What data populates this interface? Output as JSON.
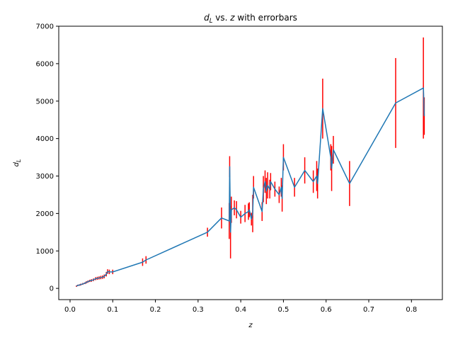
{
  "chart_data": {
    "type": "line",
    "title": "d_L vs. z with errorbars",
    "title_parts": {
      "sym": "d",
      "sub": "L",
      "rest": " vs. ",
      "var": "z",
      "tail": " with errorbars"
    },
    "xlabel": "z",
    "ylabel_parts": {
      "sym": "d",
      "sub": "L"
    },
    "xlim": [
      -0.0265,
      0.8725
    ],
    "ylim": [
      -300,
      7000
    ],
    "xticks": [
      0.0,
      0.1,
      0.2,
      0.3,
      0.4,
      0.5,
      0.6,
      0.7,
      0.8
    ],
    "xtick_labels": [
      "0.0",
      "0.1",
      "0.2",
      "0.3",
      "0.4",
      "0.5",
      "0.6",
      "0.7",
      "0.8"
    ],
    "yticks": [
      0,
      1000,
      2000,
      3000,
      4000,
      5000,
      6000,
      7000
    ],
    "ytick_labels": [
      "0",
      "1000",
      "2000",
      "3000",
      "4000",
      "5000",
      "6000",
      "7000"
    ],
    "grid": false,
    "line_color": "#1f77b4",
    "errorbar_color": "#ff0000",
    "series": [
      {
        "x": [
          0.015,
          0.018,
          0.022,
          0.025,
          0.03,
          0.035,
          0.038,
          0.042,
          0.046,
          0.05,
          0.055,
          0.06,
          0.064,
          0.068,
          0.072,
          0.076,
          0.08,
          0.085,
          0.088,
          0.092,
          0.1,
          0.17,
          0.178,
          0.322,
          0.355,
          0.373,
          0.374,
          0.376,
          0.378,
          0.385,
          0.39,
          0.4,
          0.41,
          0.418,
          0.42,
          0.425,
          0.428,
          0.43,
          0.45,
          0.453,
          0.457,
          0.46,
          0.463,
          0.468,
          0.47,
          0.48,
          0.49,
          0.495,
          0.497,
          0.5,
          0.526,
          0.55,
          0.57,
          0.578,
          0.58,
          0.592,
          0.611,
          0.613,
          0.617,
          0.655,
          0.763,
          0.828,
          0.83
        ],
        "y": [
          60,
          80,
          90,
          100,
          120,
          140,
          160,
          180,
          200,
          210,
          230,
          260,
          270,
          280,
          290,
          300,
          320,
          380,
          450,
          440,
          440,
          700,
          760,
          1500,
          1880,
          1800,
          3250,
          1500,
          2100,
          2150,
          2100,
          1900,
          2000,
          2050,
          2100,
          1850,
          2000,
          2700,
          2050,
          2650,
          2850,
          2600,
          2750,
          2650,
          2850,
          2650,
          2500,
          2700,
          2400,
          3500,
          2700,
          3150,
          2850,
          3000,
          2800,
          4800,
          3500,
          3200,
          3700,
          2800,
          4950,
          5350,
          4600
        ],
        "err": [
          20,
          20,
          20,
          25,
          25,
          25,
          30,
          30,
          30,
          35,
          35,
          40,
          40,
          40,
          45,
          45,
          50,
          60,
          60,
          60,
          60,
          100,
          100,
          120,
          280,
          480,
          280,
          700,
          350,
          200,
          230,
          170,
          230,
          220,
          200,
          170,
          500,
          300,
          250,
          350,
          300,
          350,
          350,
          250,
          230,
          200,
          220,
          250,
          350,
          350,
          250,
          350,
          300,
          400,
          400,
          800,
          350,
          600,
          370,
          600,
          1200,
          1350,
          500
        ]
      }
    ]
  }
}
